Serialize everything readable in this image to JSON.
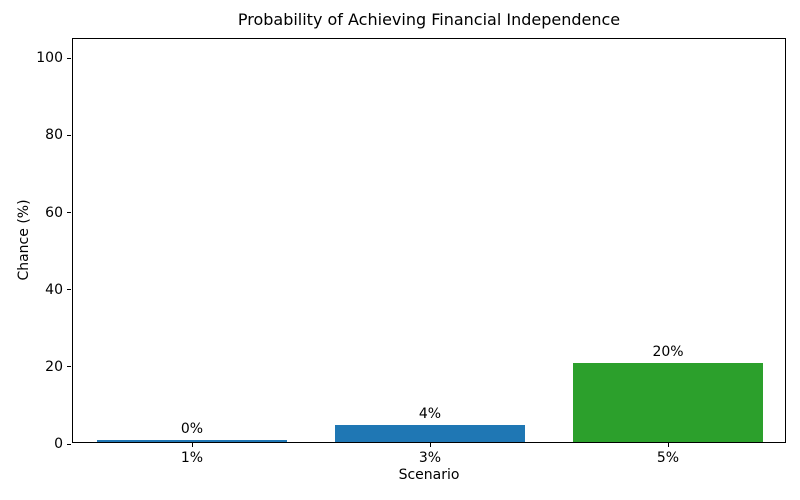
{
  "chart_data": {
    "type": "bar",
    "title": "Probability of Achieving Financial Independence",
    "xlabel": "Scenario",
    "ylabel": "Chance (%)",
    "categories": [
      "1%",
      "3%",
      "5%"
    ],
    "values": [
      0.5,
      4.5,
      20.5
    ],
    "bar_labels": [
      "0%",
      "4%",
      "20%"
    ],
    "bar_colors": [
      "#1f77b4",
      "#1f77b4",
      "#2ca02c"
    ],
    "yticks": [
      0,
      20,
      40,
      60,
      80,
      100
    ],
    "ylim": [
      0,
      105
    ],
    "grid": false,
    "legend": "none",
    "bar_width_fraction": 0.8,
    "spine_color": "#000000",
    "background": "#ffffff"
  }
}
